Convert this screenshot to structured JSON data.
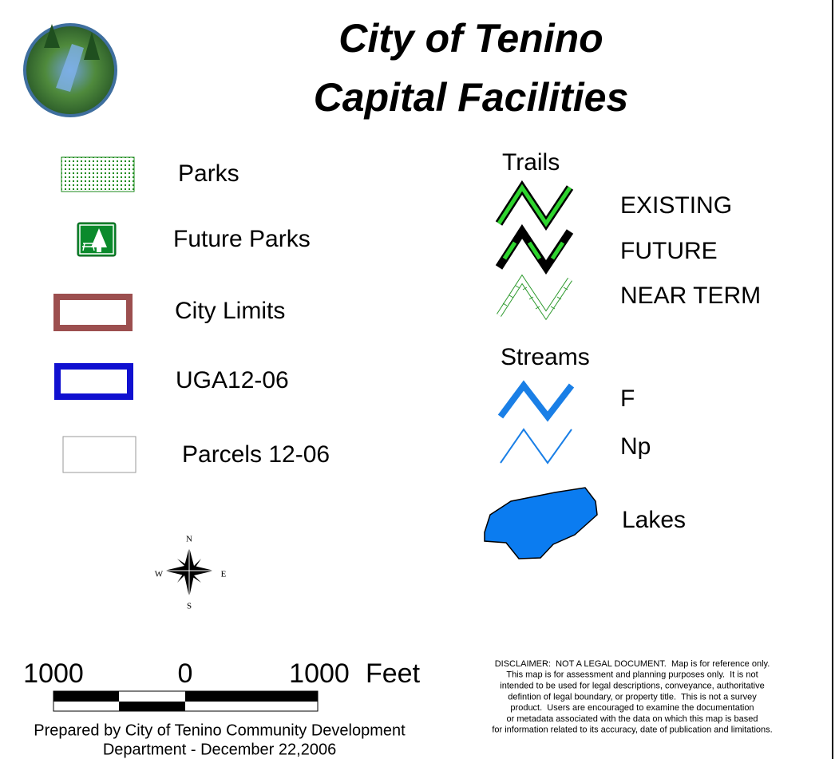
{
  "header": {
    "title_lines": [
      "City of Tenino",
      "Capital Facilities"
    ]
  },
  "legend_left": [
    {
      "label": "Parks"
    },
    {
      "label": "Future Parks"
    },
    {
      "label": "City Limits"
    },
    {
      "label": "UGA12-06"
    },
    {
      "label": "Parcels 12-06"
    }
  ],
  "trails": {
    "heading": "Trails",
    "items": [
      {
        "label": "EXISTING"
      },
      {
        "label": "FUTURE"
      },
      {
        "label": "NEAR TERM"
      }
    ]
  },
  "streams": {
    "heading": "Streams",
    "items": [
      {
        "label": "F"
      },
      {
        "label": "Np"
      }
    ]
  },
  "lakes": {
    "label": "Lakes"
  },
  "compass": {
    "n": "N",
    "e": "E",
    "s": "S",
    "w": "W"
  },
  "scale_bar": {
    "labels": [
      "1000",
      "0",
      "1000"
    ],
    "unit": "Feet"
  },
  "prepared_by": [
    "Prepared by City of Tenino Community Development",
    "Department - December 22,2006"
  ],
  "disclaimer": [
    "DISCLAIMER:  NOT A LEGAL DOCUMENT.  Map is for reference only.",
    "This map is for assessment and planning purposes only.  It is not",
    "intended to be used for legal descriptions, conveyance, authoritative",
    "defintion of legal boundary, or property title.  This is not a survey",
    "product.  Users are encouraged to examine the documentation",
    "or metadata associated with the data on which this map is based",
    "for information related to its accuracy, date of publication and limitations."
  ]
}
